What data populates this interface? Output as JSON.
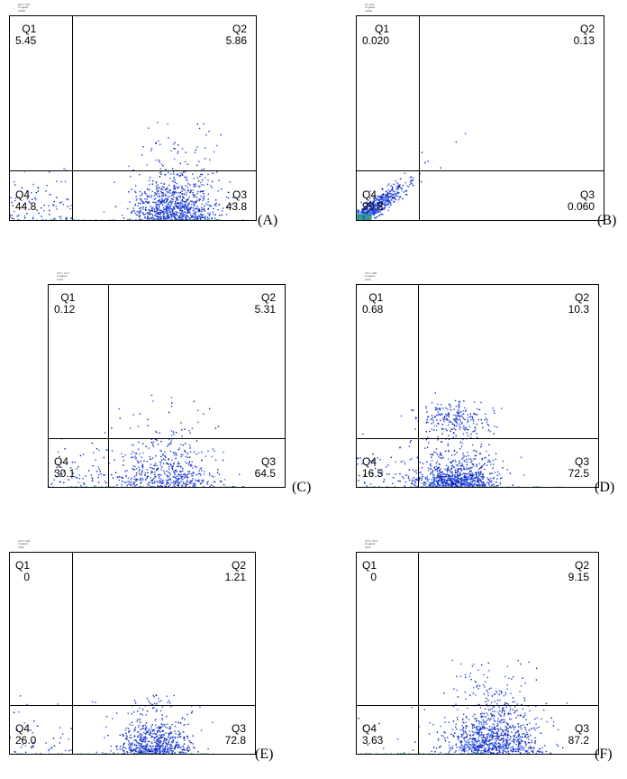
{
  "chart_data": [
    {
      "type": "scatter",
      "label": "(A)",
      "quadrants": {
        "Q1": "5.45",
        "Q2": "5.86",
        "Q3": "43.8",
        "Q4": "44.8"
      },
      "quadrant_names": [
        "Q1",
        "Q2",
        "Q3",
        "Q4"
      ],
      "gate": {
        "x": 1.0,
        "y": 1.0
      },
      "xlim": [
        0,
        4
      ],
      "ylim": [
        0,
        4
      ],
      "cloud": {
        "cx": 2.65,
        "cy": 0.35,
        "sx": 0.35,
        "sy": 0.35,
        "ymax": 2.4,
        "n": 950
      },
      "cloud_left": {
        "n": 90
      },
      "dot_colors": [
        "#1f3fd8",
        "#0a1aa0",
        "#2a5aff"
      ],
      "header": "ER 1 U26\nUngated\n10000"
    },
    {
      "type": "scatter",
      "label": "(B)",
      "quadrants": {
        "Q1": "0.020",
        "Q2": "0.13",
        "Q3": "0.060",
        "Q4": "99.8"
      },
      "quadrant_names": [
        "Q1",
        "Q2",
        "Q3",
        "Q4"
      ],
      "gate": {
        "x": 1.0,
        "y": 1.0
      },
      "xlim": [
        0,
        4
      ],
      "ylim": [
        0,
        4
      ],
      "cloud": {
        "diagonal": true,
        "n": 520
      },
      "outliers": [
        [
          1.05,
          1.35
        ],
        [
          1.6,
          1.55
        ],
        [
          1.75,
          1.72
        ],
        [
          1.35,
          1.05
        ],
        [
          1.1,
          1.15
        ]
      ],
      "dot_colors": [
        "#1f3fd8",
        "#0a1aa0",
        "#2a5aff"
      ],
      "header": "UC 004\nUngated\n10000"
    },
    {
      "type": "scatter",
      "label": "(C)",
      "quadrants": {
        "Q1": "0.12",
        "Q2": "5.31",
        "Q3": "64.5",
        "Q4": "30.1"
      },
      "quadrant_names": [
        "Q1",
        "Q2",
        "Q3",
        "Q4"
      ],
      "gate": {
        "x": 1.0,
        "y": 1.0
      },
      "xlim": [
        0,
        4
      ],
      "ylim": [
        0,
        4
      ],
      "cloud": {
        "cx": 2.0,
        "cy": 0.45,
        "sx": 0.45,
        "sy": 0.35,
        "ymax": 1.85,
        "n": 560
      },
      "cloud_left": {
        "n": 70
      },
      "dot_colors": [
        "#1f3fd8",
        "#0a1aa0",
        "#2a5aff"
      ],
      "header": "IV5 1 U1 0\nUngated\n1435"
    },
    {
      "type": "scatter",
      "label": "(D)",
      "quadrants": {
        "Q1": "0.68",
        "Q2": "10.3",
        "Q3": "72.5",
        "Q4": "16.5"
      },
      "quadrant_names": [
        "Q1",
        "Q2",
        "Q3",
        "Q4"
      ],
      "gate": {
        "x": 1.0,
        "y": 1.0
      },
      "xlim": [
        0,
        4
      ],
      "ylim": [
        0,
        4
      ],
      "cloud": {
        "cx": 1.65,
        "cy": 0.3,
        "sx": 0.35,
        "sy": 0.25,
        "ymax": 1.3,
        "n": 900,
        "upper": {
          "cx": 1.6,
          "cy": 1.4,
          "n": 220
        }
      },
      "cloud_left": {
        "n": 60
      },
      "dot_colors": [
        "#1f3fd8",
        "#0a1aa0",
        "#2a5aff"
      ],
      "header": "IV5 1 U80\nUngated\n2315"
    },
    {
      "type": "scatter",
      "label": "(E)",
      "quadrants": {
        "Q1": "0",
        "Q2": "1.21",
        "Q3": "72.8",
        "Q4": "26.0"
      },
      "quadrant_names": [
        "Q1",
        "Q2",
        "Q3",
        "Q4"
      ],
      "gate": {
        "x": 1.0,
        "y": 1.0
      },
      "xlim": [
        0,
        4
      ],
      "ylim": [
        0,
        4
      ],
      "cloud": {
        "cx": 2.35,
        "cy": 0.35,
        "sx": 0.3,
        "sy": 0.3,
        "ymax": 1.2,
        "n": 700
      },
      "cloud_left": {
        "n": 45
      },
      "dot_colors": [
        "#1f3fd8",
        "#0a1aa0",
        "#2a5aff"
      ],
      "header": "IV5 1 U26\nUngated\n1180"
    },
    {
      "type": "scatter",
      "label": "(F)",
      "quadrants": {
        "Q1": "0",
        "Q2": "9.15",
        "Q3": "87.2",
        "Q4": "3.63"
      },
      "quadrant_names": [
        "Q1",
        "Q2",
        "Q3",
        "Q4"
      ],
      "gate": {
        "x": 1.0,
        "y": 1.0
      },
      "xlim": [
        0,
        4
      ],
      "ylim": [
        0,
        4
      ],
      "cloud": {
        "cx": 2.25,
        "cy": 0.5,
        "sx": 0.38,
        "sy": 0.45,
        "ymax": 1.9,
        "n": 1000
      },
      "cloud_left": {
        "n": 10
      },
      "dot_colors": [
        "#1f3fd8",
        "#0a1aa0",
        "#2a5aff"
      ],
      "header": "IV5 1 U9 9\nUngated\n2315"
    }
  ]
}
